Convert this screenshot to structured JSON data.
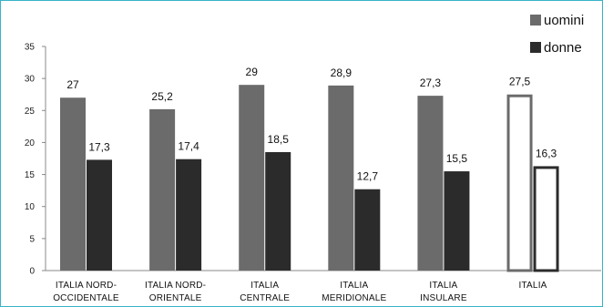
{
  "chart_data": {
    "type": "bar",
    "categories": [
      [
        "ITALIA NORD-",
        "OCCIDENTALE"
      ],
      [
        "ITALIA NORD-",
        "ORIENTALE"
      ],
      [
        "ITALIA",
        "CENTRALE"
      ],
      [
        "ITALIA",
        "MERIDIONALE"
      ],
      [
        "ITALIA",
        "INSULARE"
      ],
      [
        "ITALIA"
      ]
    ],
    "series": [
      {
        "name": "uomini",
        "values": [
          27,
          25.2,
          29,
          28.9,
          27.3,
          27.5
        ],
        "labels": [
          "27",
          "25,2",
          "29",
          "28,9",
          "27,3",
          "27,5"
        ],
        "color": "#6b6b6b"
      },
      {
        "name": "donne",
        "values": [
          17.3,
          17.4,
          18.5,
          12.7,
          15.5,
          16.3
        ],
        "labels": [
          "17,3",
          "17,4",
          "18,5",
          "12,7",
          "15,5",
          "16,3"
        ],
        "color": "#2b2b2b"
      }
    ],
    "highlight_last_category_outline": true,
    "ylim": [
      0,
      35
    ],
    "yticks": [
      0,
      5,
      10,
      15,
      20,
      25,
      30,
      35
    ],
    "grid": false,
    "legend_position": "top-right",
    "title": "",
    "xlabel": "",
    "ylabel": ""
  }
}
